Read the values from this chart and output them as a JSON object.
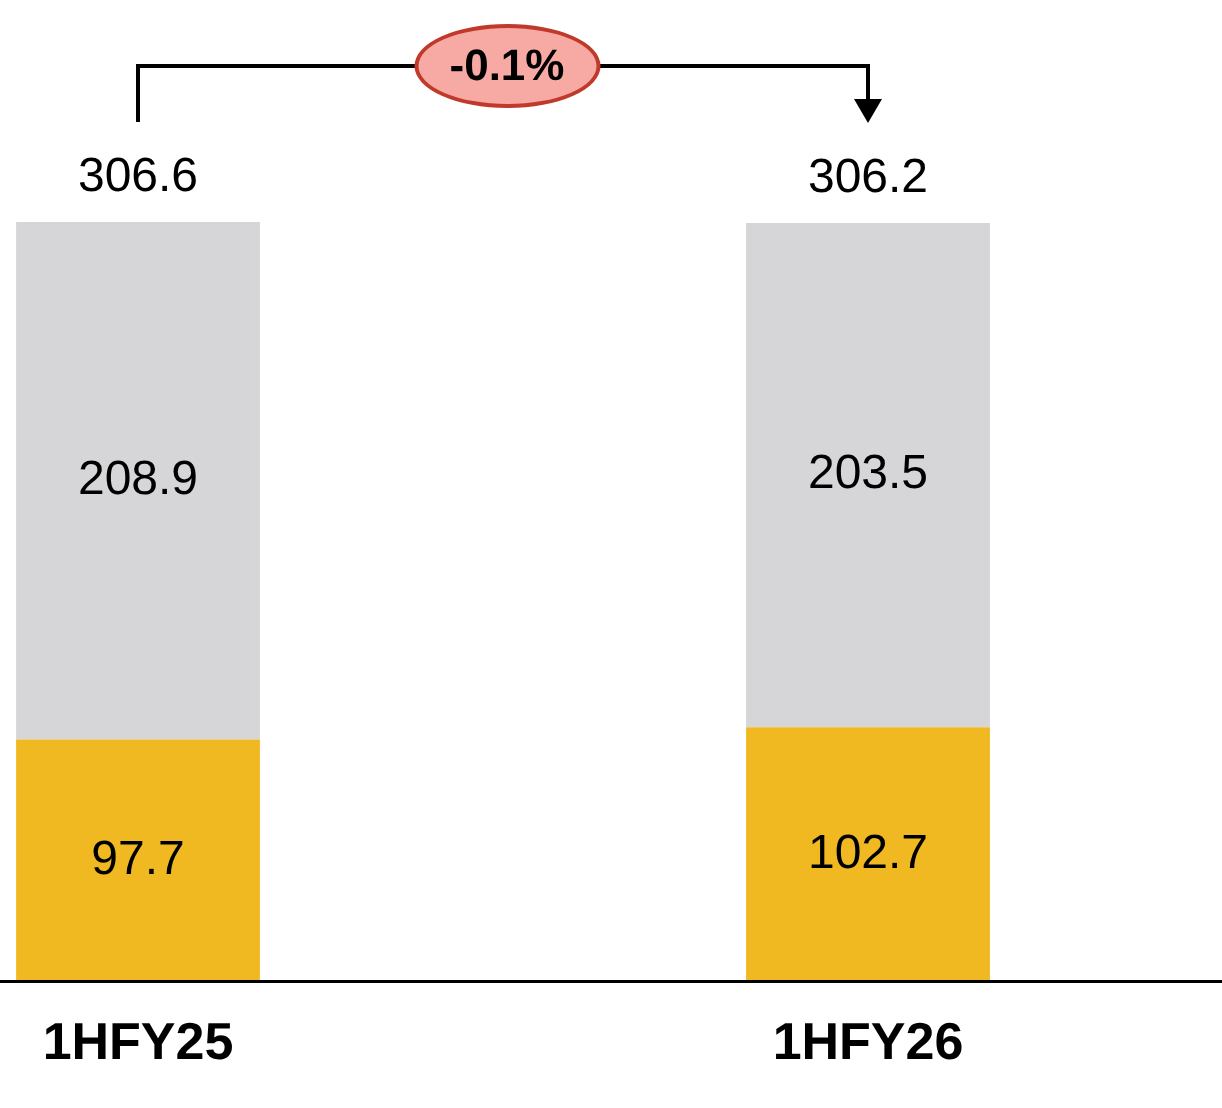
{
  "chart_data": {
    "type": "bar",
    "stacked": true,
    "categories": [
      "1HFY25",
      "1HFY26"
    ],
    "series": [
      {
        "color": "#f0b921",
        "values": [
          97.7,
          102.7
        ]
      },
      {
        "color": "#d6d6d8",
        "values": [
          208.9,
          203.5
        ]
      }
    ],
    "data_labels": true,
    "totals": [
      "306.6",
      "306.2"
    ],
    "annotations": [
      "-0.1%"
    ],
    "grid": false,
    "tick_labels": "x"
  }
}
